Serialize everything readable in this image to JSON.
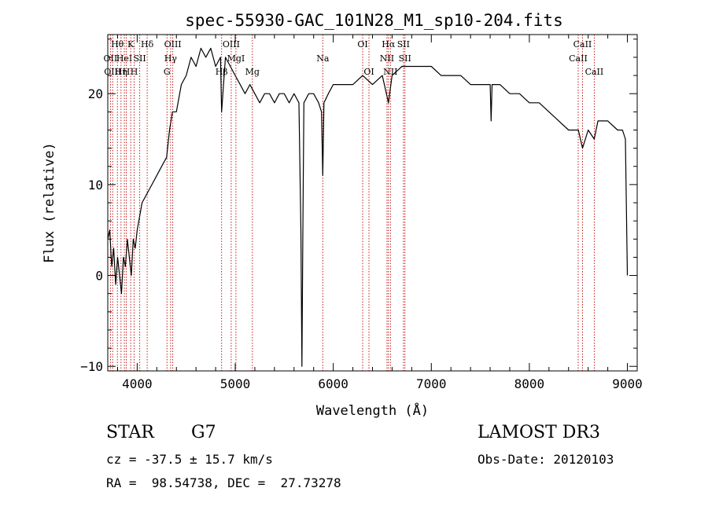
{
  "chart_data": {
    "type": "line",
    "title": "spec-55930-GAC_101N28_M1_sp10-204.fits",
    "xlabel": "Wavelength (Å)",
    "ylabel": "Flux (relative)",
    "xlim": [
      3700,
      9100
    ],
    "ylim": [
      -10.5,
      26.5
    ],
    "x_ticks": [
      4000,
      5000,
      6000,
      7000,
      8000,
      9000
    ],
    "y_ticks": [
      -10,
      0,
      10,
      20
    ],
    "series": [
      {
        "name": "spectrum",
        "x": [
          3700,
          3720,
          3740,
          3760,
          3780,
          3800,
          3820,
          3840,
          3860,
          3880,
          3900,
          3920,
          3940,
          3960,
          3980,
          4000,
          4050,
          4100,
          4150,
          4200,
          4250,
          4300,
          4330,
          4360,
          4400,
          4450,
          4500,
          4550,
          4600,
          4650,
          4700,
          4750,
          4800,
          4850,
          4861,
          4900,
          4950,
          5000,
          5050,
          5100,
          5150,
          5200,
          5250,
          5300,
          5350,
          5400,
          5450,
          5500,
          5550,
          5600,
          5650,
          5670,
          5680,
          5690,
          5700,
          5750,
          5800,
          5850,
          5880,
          5893,
          5905,
          5950,
          6000,
          6100,
          6200,
          6300,
          6400,
          6500,
          6563,
          6600,
          6700,
          6800,
          6900,
          7000,
          7100,
          7200,
          7300,
          7400,
          7500,
          7600,
          7610,
          7620,
          7700,
          7800,
          7900,
          8000,
          8100,
          8200,
          8300,
          8400,
          8500,
          8542,
          8600,
          8662,
          8700,
          8800,
          8900,
          8950,
          8980,
          9000
        ],
        "y": [
          4,
          5,
          1,
          3,
          -1,
          2,
          0,
          -2,
          2,
          1,
          4,
          2,
          0,
          4,
          3,
          5,
          8,
          9,
          10,
          11,
          12,
          13,
          16,
          18,
          18,
          21,
          22,
          24,
          23,
          25,
          24,
          25,
          23,
          24,
          18,
          24,
          23,
          22,
          21,
          20,
          21,
          20,
          19,
          20,
          20,
          19,
          20,
          20,
          19,
          20,
          19,
          5,
          -10,
          5,
          19,
          20,
          20,
          19,
          18,
          11,
          19,
          20,
          21,
          21,
          21,
          22,
          21,
          22,
          19,
          22,
          23,
          23,
          23,
          23,
          22,
          22,
          22,
          21,
          21,
          21,
          17,
          21,
          21,
          20,
          20,
          19,
          19,
          18,
          17,
          16,
          16,
          14,
          16,
          15,
          17,
          17,
          16,
          16,
          15,
          0
        ]
      }
    ],
    "lines": [
      {
        "x": 3727,
        "label": "OII",
        "row": 2
      },
      {
        "x": 3750,
        "label": "OIII",
        "row": 3
      },
      {
        "x": 3798,
        "label": "Hθ",
        "row": 1
      },
      {
        "x": 3835,
        "label": "Hη",
        "row": 3
      },
      {
        "x": 3869,
        "label": "HeI",
        "row": 2
      },
      {
        "x": 3889,
        "label": "H",
        "row": 3
      },
      {
        "x": 3934,
        "label": "K",
        "row": 1
      },
      {
        "x": 3969,
        "label": "H",
        "row": 3
      },
      {
        "x": 4026,
        "label": "SII",
        "row": 2
      },
      {
        "x": 4102,
        "label": "Hδ",
        "row": 1
      },
      {
        "x": 4304,
        "label": "G",
        "row": 3
      },
      {
        "x": 4341,
        "label": "Hγ",
        "row": 2
      },
      {
        "x": 4363,
        "label": "OIII",
        "row": 1
      },
      {
        "x": 4861,
        "label": "Hβ",
        "row": 3
      },
      {
        "x": 4959,
        "label": "OIII",
        "row": 1
      },
      {
        "x": 5007,
        "label": "MgI",
        "row": 2
      },
      {
        "x": 5175,
        "label": "Mg",
        "row": 3
      },
      {
        "x": 5893,
        "label": "Na",
        "row": 2
      },
      {
        "x": 6300,
        "label": "OI",
        "row": 1
      },
      {
        "x": 6364,
        "label": "OI",
        "row": 3
      },
      {
        "x": 6548,
        "label": "NII",
        "row": 2
      },
      {
        "x": 6563,
        "label": "Hα",
        "row": 1
      },
      {
        "x": 6583,
        "label": "NII",
        "row": 3
      },
      {
        "x": 6716,
        "label": "SII",
        "row": 1
      },
      {
        "x": 6731,
        "label": "SII",
        "row": 2
      },
      {
        "x": 8498,
        "label": "CaII",
        "row": 2
      },
      {
        "x": 8542,
        "label": "CaII",
        "row": 1
      },
      {
        "x": 8662,
        "label": "CaII",
        "row": 3
      }
    ]
  },
  "info": {
    "object_type": "STAR",
    "subclass": "G7",
    "survey": "LAMOST DR3",
    "redshift": "cz = -37.5 ± 15.7 km/s",
    "obs_date": "Obs-Date: 20120103",
    "coords": "RA =  98.54738, DEC =  27.73278"
  }
}
